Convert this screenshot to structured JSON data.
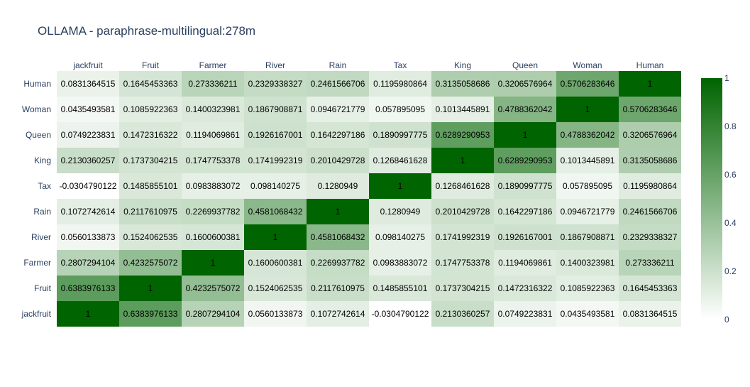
{
  "chart_data": {
    "type": "heatmap",
    "title": "OLLAMA - paraphrase-multilingual:278m",
    "x": [
      "jackfruit",
      "Fruit",
      "Farmer",
      "River",
      "Rain",
      "Tax",
      "King",
      "Queen",
      "Woman",
      "Human"
    ],
    "y": [
      "Human",
      "Woman",
      "Queen",
      "King",
      "Tax",
      "Rain",
      "River",
      "Farmer",
      "Fruit",
      "jackfruit"
    ],
    "z": [
      [
        0.0831364515,
        0.1645453363,
        0.273336211,
        0.2329338327,
        0.2461566706,
        0.1195980864,
        0.3135058686,
        0.3206576964,
        0.5706283646,
        1.0
      ],
      [
        0.0435493581,
        0.1085922363,
        0.1400323981,
        0.1867908871,
        0.0946721779,
        0.057895095,
        0.1013445891,
        0.4788362042,
        1.0,
        0.5706283646
      ],
      [
        0.0749223831,
        0.1472316322,
        0.1194069861,
        0.1926167001,
        0.1642297186,
        0.1890997775,
        0.6289290953,
        1.0,
        0.4788362042,
        0.3206576964
      ],
      [
        0.2130360257,
        0.1737304215,
        0.1747753378,
        0.1741992319,
        0.2010429728,
        0.1268461628,
        1.0,
        0.6289290953,
        0.1013445891,
        0.3135058686
      ],
      [
        -0.0304790122,
        0.1485855101,
        0.0983883072,
        0.098140275,
        0.1280949,
        1.0,
        0.1268461628,
        0.1890997775,
        0.057895095,
        0.1195980864
      ],
      [
        0.1072742614,
        0.2117610975,
        0.2269937782,
        0.4581068432,
        1.0,
        0.1280949,
        0.2010429728,
        0.1642297186,
        0.0946721779,
        0.2461566706
      ],
      [
        0.0560133873,
        0.1524062535,
        0.1600600381,
        1.0,
        0.4581068432,
        0.098140275,
        0.1741992319,
        0.1926167001,
        0.1867908871,
        0.2329338327
      ],
      [
        0.2807294104,
        0.4232575072,
        1.0,
        0.1600600381,
        0.2269937782,
        0.0983883072,
        0.1747753378,
        0.1194069861,
        0.1400323981,
        0.273336211
      ],
      [
        0.6383976133,
        1.0,
        0.4232575072,
        0.1524062535,
        0.2117610975,
        0.1485855101,
        0.1737304215,
        0.1472316322,
        0.1085922363,
        0.1645453363
      ],
      [
        1.0,
        0.6383976133,
        0.2807294104,
        0.0560133873,
        0.1072742614,
        -0.0304790122,
        0.2130360257,
        0.0749223831,
        0.0435493581,
        0.0831364515
      ]
    ],
    "zlim": [
      0,
      1
    ],
    "colorscale": [
      "#ffffff",
      "#006400"
    ],
    "colorbar_ticks": [
      "0",
      "0.2",
      "0.4",
      "0.6",
      "0.8",
      "1"
    ],
    "x_axis_position": "top",
    "grid": false
  }
}
